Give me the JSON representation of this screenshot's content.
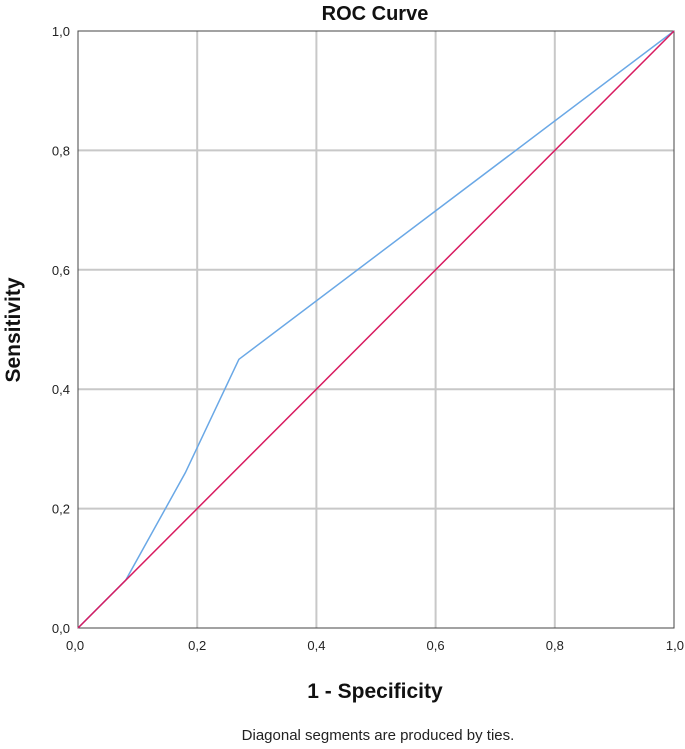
{
  "chart_data": {
    "type": "line",
    "title": "ROC Curve",
    "xlabel": "1 - Specificity",
    "ylabel": "Sensitivity",
    "footnote": "Diagonal segments are produced by ties.",
    "xlim": [
      0,
      1
    ],
    "ylim": [
      0,
      1
    ],
    "x_ticks": [
      "0,0",
      "0,2",
      "0,4",
      "0,6",
      "0,8",
      "1,0"
    ],
    "y_ticks": [
      "0,0",
      "0,2",
      "0,4",
      "0,6",
      "0,8",
      "1,0"
    ],
    "grid": true,
    "legend": "none",
    "series": [
      {
        "color": "#6aa8e6",
        "x": [
          0,
          0.08,
          0.18,
          0.27,
          1.0
        ],
        "y": [
          0,
          0.08,
          0.26,
          0.45,
          1.0
        ]
      },
      {
        "color": "#d81b60",
        "x": [
          0,
          1
        ],
        "y": [
          0,
          1
        ]
      }
    ]
  }
}
